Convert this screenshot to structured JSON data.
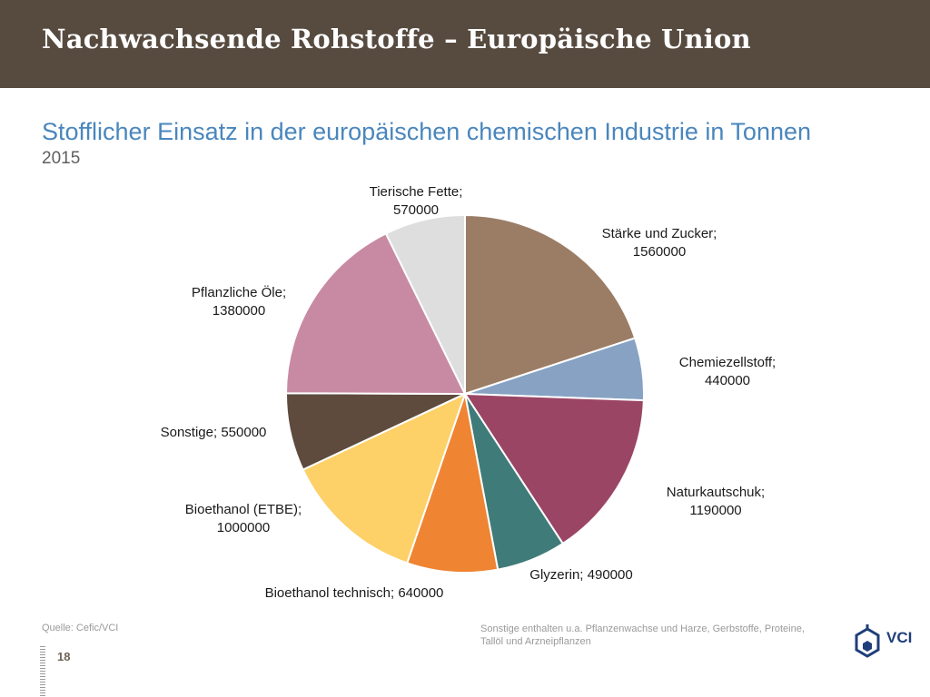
{
  "header": {
    "title": "Nachwachsende Rohstoffe – Europäische Union"
  },
  "subtitle": "Stofflicher Einsatz in der europäischen chemischen Industrie in Tonnen",
  "year": "2015",
  "colors": {
    "header_bg": "#574b40",
    "subtitle": "#4a86bd"
  },
  "chart_data": {
    "type": "pie",
    "title": "",
    "start": "12 o'clock",
    "direction": "clockwise",
    "series": [
      {
        "name": "Stärke und Zucker",
        "value": 1560000,
        "label": [
          "Stärke und Zucker;",
          "1560000"
        ],
        "color": "#9b7d66"
      },
      {
        "name": "Chemiezellstoff",
        "value": 440000,
        "label": [
          "Chemiezellstoff;",
          "440000"
        ],
        "color": "#87a2c3"
      },
      {
        "name": "Naturkautschuk",
        "value": 1190000,
        "label": [
          "Naturkautschuk;",
          "1190000"
        ],
        "color": "#9b4565"
      },
      {
        "name": "Glyzerin",
        "value": 490000,
        "label": [
          "Glyzerin; 490000"
        ],
        "color": "#3f7b79"
      },
      {
        "name": "Bioethanol technisch",
        "value": 640000,
        "label": [
          "Bioethanol technisch; 640000"
        ],
        "color": "#ef8433"
      },
      {
        "name": "Bioethanol (ETBE)",
        "value": 1000000,
        "label": [
          "Bioethanol (ETBE);",
          "1000000"
        ],
        "color": "#fdd068"
      },
      {
        "name": "Sonstige",
        "value": 550000,
        "label": [
          "Sonstige; 550000"
        ],
        "color": "#5e4b3d"
      },
      {
        "name": "Pflanzliche Öle",
        "value": 1380000,
        "label": [
          "Pflanzliche Öle;",
          "1380000"
        ],
        "color": "#c88aa3"
      },
      {
        "name": "Tierische Fette",
        "value": 570000,
        "label": [
          "Tierische Fette;",
          "570000"
        ],
        "color": "#dedede"
      }
    ]
  },
  "footer": {
    "source": "Quelle: Cefic/VCI",
    "note": "Sonstige enthalten u.a. Pflanzenwachse und Harze, Gerbstoffe, Proteine, Tallöl und Arzneipflanzen",
    "page_number": "18"
  },
  "logo": {
    "text": "VCI"
  }
}
